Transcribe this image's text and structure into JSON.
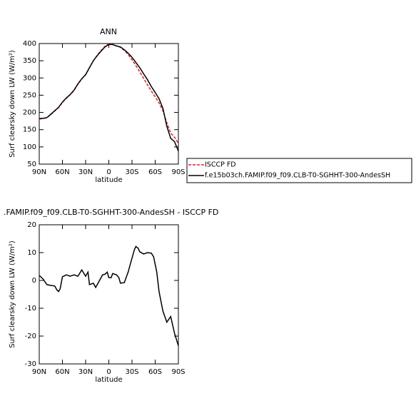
{
  "chart_data": [
    {
      "type": "line",
      "title": "ANN",
      "xlabel": "latitude",
      "ylabel": "Surf clearsky down LW (W/m²)",
      "x": [
        90,
        85,
        80,
        75,
        70,
        65,
        60,
        55,
        50,
        45,
        40,
        35,
        30,
        25,
        20,
        15,
        10,
        5,
        0,
        -5,
        -10,
        -15,
        -20,
        -25,
        -30,
        -35,
        -40,
        -45,
        -50,
        -55,
        -60,
        -65,
        -70,
        -75,
        -80,
        -85,
        -90
      ],
      "xlim": [
        90,
        -90
      ],
      "xticks": [
        {
          "value": 90,
          "label": "90N"
        },
        {
          "value": 60,
          "label": "60N"
        },
        {
          "value": 30,
          "label": "30N"
        },
        0,
        {
          "value": -30,
          "label": "30S"
        },
        {
          "value": -60,
          "label": "60S"
        },
        {
          "value": -90,
          "label": "90S"
        }
      ],
      "ylim": [
        50,
        400
      ],
      "yticks": [
        50,
        100,
        150,
        200,
        250,
        300,
        350,
        400
      ],
      "series": [
        {
          "name": "ISCCP FD",
          "color": "#e8202a",
          "dash": true,
          "values": [
            181,
            182,
            185,
            194,
            204,
            214,
            229,
            241,
            251,
            264,
            282,
            297,
            309,
            330,
            350,
            366,
            380,
            392,
            400,
            398,
            393,
            389,
            380,
            368,
            353,
            336,
            318,
            299,
            280,
            262,
            245,
            228,
            205,
            170,
            140,
            128,
            110
          ]
        },
        {
          "name": "f.e15b03ch.FAMIP.f09_f09.CLB-T0-SGHHT-300-AndesSH",
          "color": "#000000",
          "dash": false,
          "values": [
            182,
            183,
            185,
            195,
            205,
            215,
            230,
            242,
            252,
            265,
            283,
            298,
            310,
            330,
            350,
            365,
            378,
            390,
            397,
            397,
            393,
            390,
            382,
            372,
            360,
            345,
            330,
            312,
            295,
            275,
            258,
            240,
            212,
            160,
            125,
            115,
            88
          ]
        }
      ]
    },
    {
      "type": "line",
      "title": ".FAMIP.f09_f09.CLB-T0-SGHHT-300-AndesSH - ISCCP FD",
      "xlabel": "latitude",
      "ylabel": "Surf clearsky down LW (W/m²)",
      "x": [
        90,
        85,
        80,
        75,
        70,
        67,
        65,
        63,
        60,
        55,
        50,
        45,
        40,
        35,
        30,
        27,
        25,
        20,
        17,
        12,
        8,
        5,
        2,
        0,
        -3,
        -5,
        -10,
        -13,
        -15,
        -20,
        -25,
        -28,
        -30,
        -33,
        -35,
        -38,
        -40,
        -45,
        -50,
        -55,
        -58,
        -62,
        -65,
        -70,
        -75,
        -78,
        -80,
        -85,
        -90
      ],
      "xlim": [
        90,
        -90
      ],
      "xticks": [
        {
          "value": 90,
          "label": "90N"
        },
        {
          "value": 60,
          "label": "60N"
        },
        {
          "value": 30,
          "label": "30N"
        },
        0,
        {
          "value": -30,
          "label": "30S"
        },
        {
          "value": -60,
          "label": "60S"
        },
        {
          "value": -90,
          "label": "90S"
        }
      ],
      "ylim": [
        -30,
        20
      ],
      "yticks": [
        -30,
        -20,
        -10,
        0,
        10,
        20
      ],
      "series": [
        {
          "color": "#000000",
          "dash": false,
          "values": [
            1.8,
            0.5,
            -1.5,
            -1.8,
            -2,
            -3.5,
            -4,
            -3,
            1.3,
            2,
            1.5,
            2,
            1.5,
            3.8,
            1.5,
            3,
            -1.5,
            -1,
            -2.5,
            0,
            2,
            2.2,
            3,
            1,
            1,
            2.5,
            2,
            1,
            -1,
            -0.8,
            3,
            6,
            8,
            11,
            12.2,
            11.5,
            10.3,
            9.5,
            10,
            9.8,
            8.5,
            3,
            -4,
            -11,
            -15,
            -13.8,
            -13,
            -19,
            -23.5
          ]
        }
      ]
    }
  ]
}
